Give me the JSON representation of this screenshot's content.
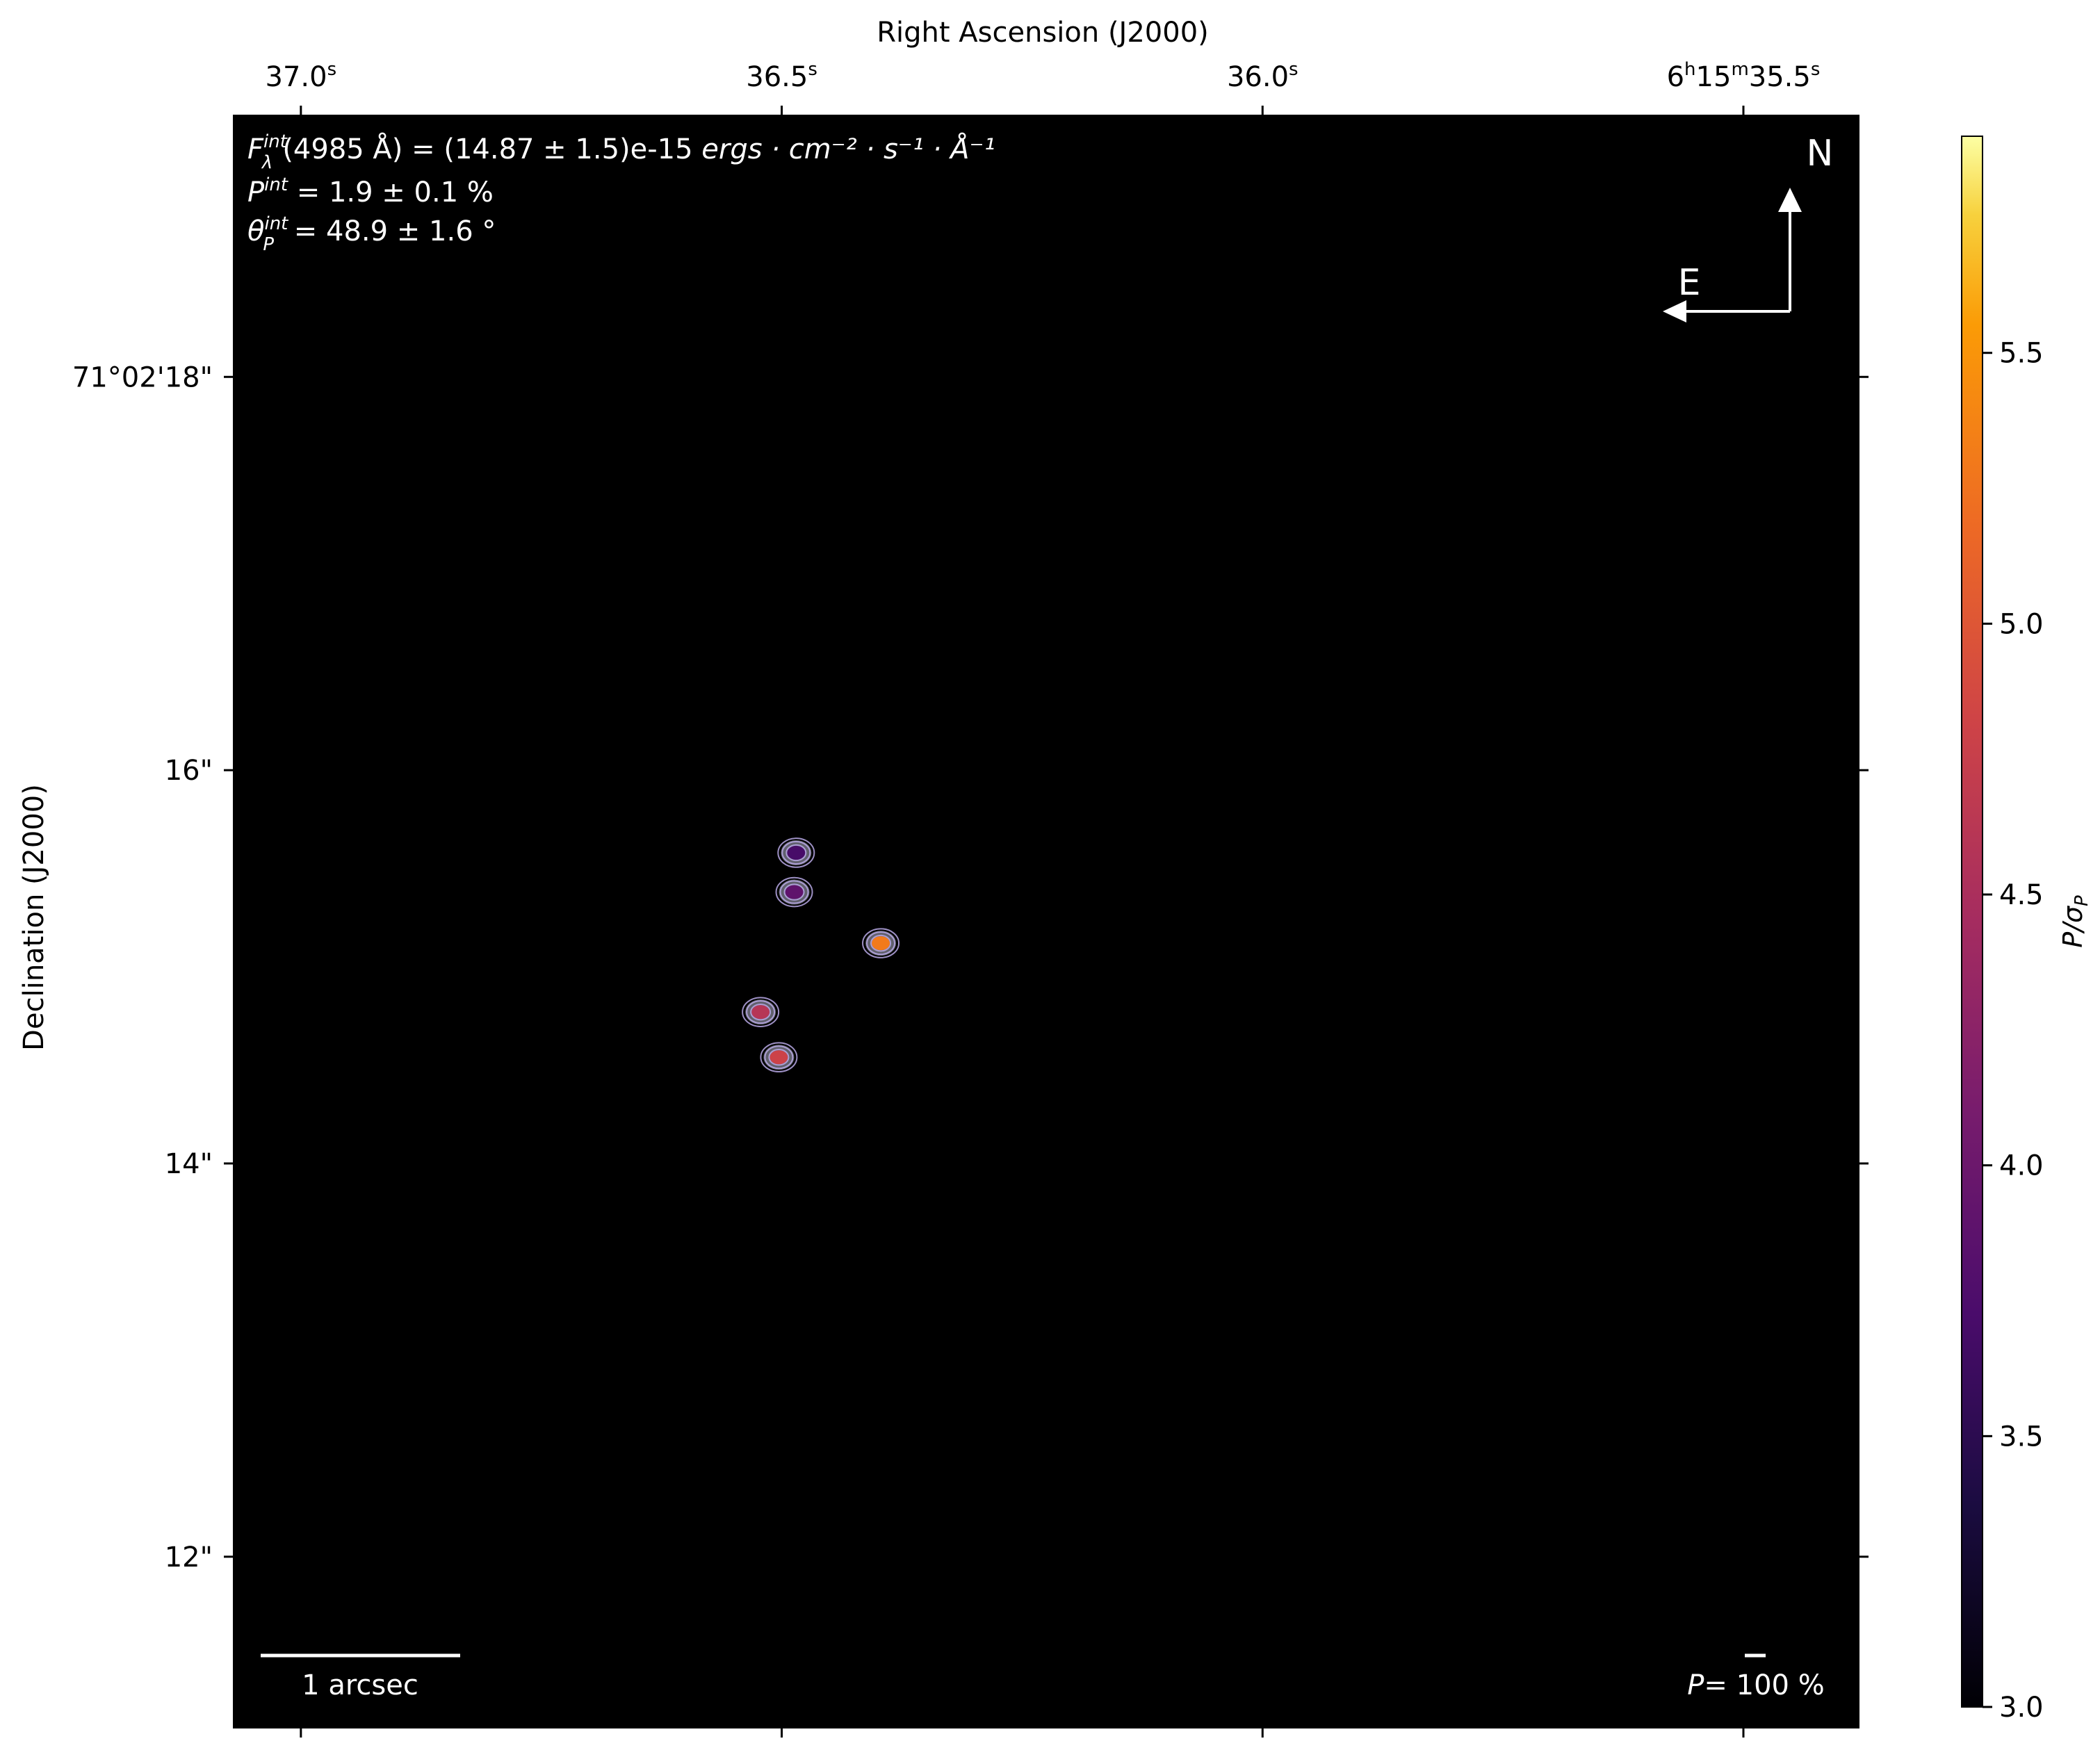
{
  "chart_data": {
    "type": "heatmap",
    "top_axis_label": "Right Ascension (J2000)",
    "left_axis_label": "Declination (J2000)",
    "ra_ticks": [
      {
        "text": "37.0",
        "sup": "s",
        "prefix": "",
        "pos": 37.0
      },
      {
        "text": "36.5",
        "sup": "s",
        "prefix": "",
        "pos": 36.5
      },
      {
        "text": "36.0",
        "sup": "s",
        "prefix": "",
        "pos": 36.0
      },
      {
        "text": "6h15m35.5s",
        "parts": [
          "6",
          "h",
          "15",
          "m",
          "35.5",
          "s"
        ],
        "pos": 35.5
      }
    ],
    "dec_ticks": [
      {
        "text": "71°02'18\"",
        "pos": 18
      },
      {
        "text": "16\"",
        "pos": 16
      },
      {
        "text": "14\"",
        "pos": 14
      },
      {
        "text": "12\"",
        "pos": 12
      }
    ],
    "ra_range": [
      37.07,
      35.38
    ],
    "dec_range": [
      19.33,
      11.13
    ],
    "annotations": {
      "flux": {
        "prefix": "F",
        "sub": "λ",
        "sup": "int",
        "body": "(4985 Å) = (14.87 ± 1.5)e-15 ",
        "units": "ergs · cm⁻² · s⁻¹ · Å⁻¹"
      },
      "pol": {
        "symbol": "P",
        "sup": "int",
        "body": " = 1.9 ± 0.1 %"
      },
      "angle": {
        "symbol": "θ",
        "sub": "P",
        "sup": "int",
        "body": " = 48.9 ± 1.6 °"
      }
    },
    "compass": {
      "north": "N",
      "east": "E"
    },
    "scalebar_label": "1 arcsec",
    "vector_scale_label": {
      "symbol": "P",
      "body": "= 100 %"
    },
    "colorbar": {
      "label": "P/σP",
      "colormap": "inferno",
      "range": [
        3.0,
        5.9
      ],
      "ticks": [
        "3.0",
        "3.5",
        "4.0",
        "4.5",
        "5.0",
        "5.5"
      ]
    },
    "sources": [
      {
        "ra": 36.487,
        "dec": 15.38,
        "level": 3.9
      },
      {
        "ra": 36.485,
        "dec": 15.58,
        "level": 3.7
      },
      {
        "ra": 36.397,
        "dec": 15.12,
        "level": 5.3
      },
      {
        "ra": 36.522,
        "dec": 14.77,
        "level": 4.6
      },
      {
        "ra": 36.503,
        "dec": 14.54,
        "level": 4.8
      }
    ],
    "background_color": "#000000",
    "contour_color": "#b9a9e6"
  }
}
